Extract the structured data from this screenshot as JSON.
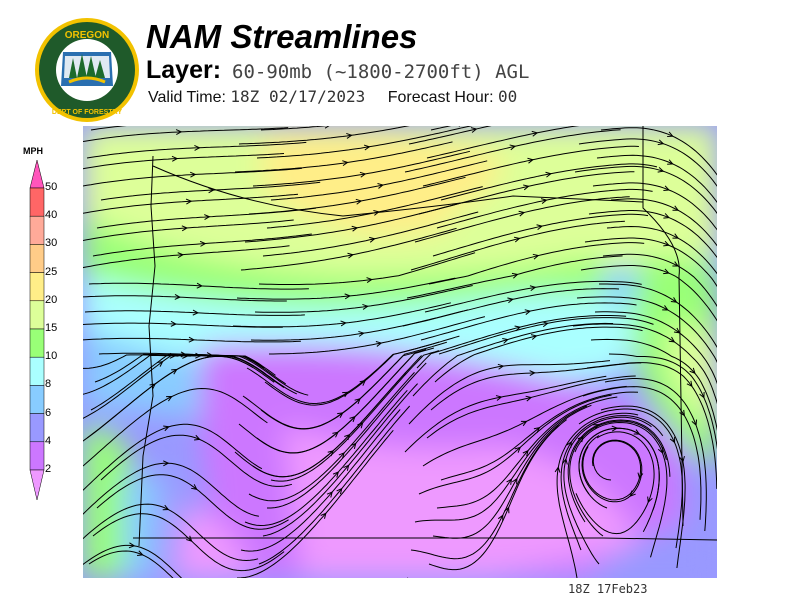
{
  "header": {
    "title": "NAM Streamlines",
    "layer_label": "Layer:",
    "layer_value": "60-90mb (~1800-2700ft) AGL",
    "valid_time_label": "Valid Time:",
    "valid_time_value": "18Z 02/17/2023",
    "forecast_hour_label": "Forecast Hour:",
    "forecast_hour_value": "00"
  },
  "logo": {
    "top_text": "OREGON",
    "bottom_text": "DEPARTMENT OF FORESTRY"
  },
  "legend": {
    "units": "MPH",
    "ticks": [
      "50",
      "40",
      "30",
      "25",
      "20",
      "15",
      "10",
      "8",
      "6",
      "4",
      "2"
    ],
    "colors": {
      "above_50": "#ff55bb",
      "40-50": "#ff6666",
      "30-40": "#ffaa99",
      "25-30": "#ffcc88",
      "20-25": "#ffee88",
      "15-20": "#ddff99",
      "10-15": "#99ff77",
      "8-10": "#aaffff",
      "6-8": "#88ccff",
      "4-6": "#9999ff",
      "2-4": "#cc77ff",
      "below_2": "#ee99ff"
    }
  },
  "footer": {
    "timestamp": "18Z 17Feb23"
  }
}
